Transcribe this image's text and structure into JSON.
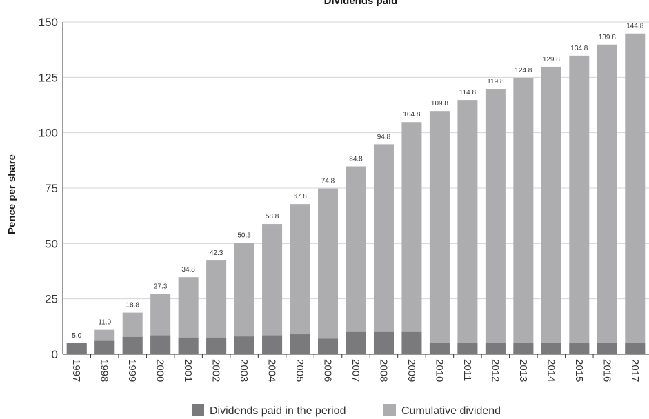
{
  "chart_data": {
    "type": "bar",
    "title": "Dividends paid",
    "ylabel": "Pence per share",
    "xlabel": "",
    "ylim": [
      0,
      150
    ],
    "yticks": [
      0,
      25,
      50,
      75,
      100,
      125,
      150
    ],
    "grid": true,
    "legend_position": "bottom",
    "categories": [
      "1997",
      "1998",
      "1999",
      "2000",
      "2001",
      "2002",
      "2003",
      "2004",
      "2005",
      "2006",
      "2007",
      "2008",
      "2009",
      "2010",
      "2011",
      "2012",
      "2013",
      "2014",
      "2015",
      "2016",
      "2017"
    ],
    "series": [
      {
        "name": "Dividends paid in the period",
        "color": "#7a7a7c",
        "values": [
          5.0,
          6.0,
          7.8,
          8.5,
          7.5,
          7.5,
          8.0,
          8.5,
          9.0,
          7.0,
          10.0,
          10.0,
          10.0,
          5.0,
          5.0,
          5.0,
          5.0,
          5.0,
          5.0,
          5.0,
          5.0
        ]
      },
      {
        "name": "Cumulative dividend",
        "color": "#adadaf",
        "values": [
          5.0,
          11.0,
          18.8,
          27.3,
          34.8,
          42.3,
          50.3,
          58.8,
          67.8,
          74.8,
          84.8,
          94.8,
          104.8,
          109.8,
          114.8,
          119.8,
          124.8,
          129.8,
          134.8,
          139.8,
          144.8
        ]
      }
    ],
    "data_labels": [
      "5.0",
      "11.0",
      "18.8",
      "27.3",
      "34.8",
      "42.3",
      "50.3",
      "58.8",
      "67.8",
      "74.8",
      "84.8",
      "94.8",
      "104.8",
      "109.8",
      "114.8",
      "119.8",
      "124.8",
      "129.8",
      "134.8",
      "139.8",
      "144.8"
    ]
  }
}
